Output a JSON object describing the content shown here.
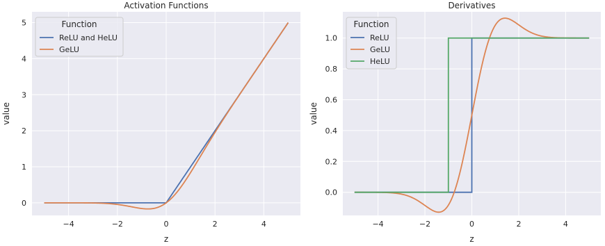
{
  "chart_data": [
    {
      "type": "line",
      "title": "Activation Functions",
      "xlabel": "z",
      "ylabel": "value",
      "xlim": [
        -5.5,
        5.5
      ],
      "ylim": [
        -0.35,
        5.3
      ],
      "xticks": [
        -4,
        -2,
        0,
        2,
        4
      ],
      "xtick_labels": [
        "−4",
        "−2",
        "0",
        "2",
        "4"
      ],
      "yticks": [
        0,
        1,
        2,
        3,
        4,
        5
      ],
      "ytick_labels": [
        "0",
        "1",
        "2",
        "3",
        "4",
        "5"
      ],
      "grid": true,
      "legend": {
        "title": "Function",
        "placement": "top-left"
      },
      "series": [
        {
          "name": "ReLU and HeLU",
          "color": "#4c72b0",
          "fn": "relu"
        },
        {
          "name": "GeLU",
          "color": "#dd8452",
          "fn": "gelu"
        }
      ],
      "x_range": [
        -5,
        5
      ]
    },
    {
      "type": "line",
      "title": "Derivatives",
      "xlabel": "z",
      "ylabel": "value",
      "xlim": [
        -5.5,
        5.5
      ],
      "ylim": [
        -0.15,
        1.17
      ],
      "xticks": [
        -4,
        -2,
        0,
        2,
        4
      ],
      "xtick_labels": [
        "−4",
        "−2",
        "0",
        "2",
        "4"
      ],
      "yticks": [
        0,
        0.2,
        0.4,
        0.6,
        0.8,
        1.0
      ],
      "ytick_labels": [
        "0.0",
        "0.2",
        "0.4",
        "0.6",
        "0.8",
        "1.0"
      ],
      "grid": true,
      "legend": {
        "title": "Function",
        "placement": "top-left"
      },
      "series": [
        {
          "name": "ReLU",
          "color": "#4c72b0",
          "fn": "drelu"
        },
        {
          "name": "GeLU",
          "color": "#dd8452",
          "fn": "dgelu"
        },
        {
          "name": "HeLU",
          "color": "#55a868",
          "fn": "dhelu"
        }
      ],
      "x_range": [
        -5,
        5
      ]
    }
  ]
}
